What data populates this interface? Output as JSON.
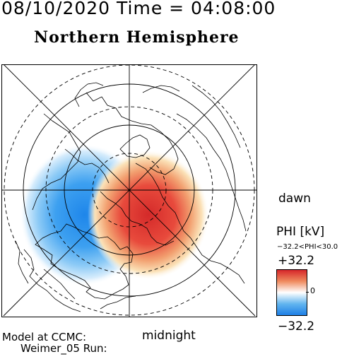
{
  "header": {
    "datetime": "08/10/2020 Time = 04:08:00"
  },
  "title": "Northern Hemisphere",
  "map": {
    "projection": "polar-stereographic",
    "labels": {
      "right": "dawn",
      "bottom": "midnight"
    },
    "contour_levels": "concentric dashed latitude circles",
    "pattern": "two-cell potential: positive (red) on dawn/left-center right, negative (blue) on dusk/left"
  },
  "model": {
    "line1": "Model at CCMC:",
    "line2": "Weimer_05 Run:"
  },
  "colorbar": {
    "title": "PHI [kV]",
    "range_text": "−32.2<PHI<30.0",
    "max_label": "+32.2",
    "zero_label": "0",
    "min_label": "−32.2",
    "colors": {
      "high": "#d6262a",
      "mid": "#ffffff",
      "low": "#1e7fe6"
    }
  }
}
